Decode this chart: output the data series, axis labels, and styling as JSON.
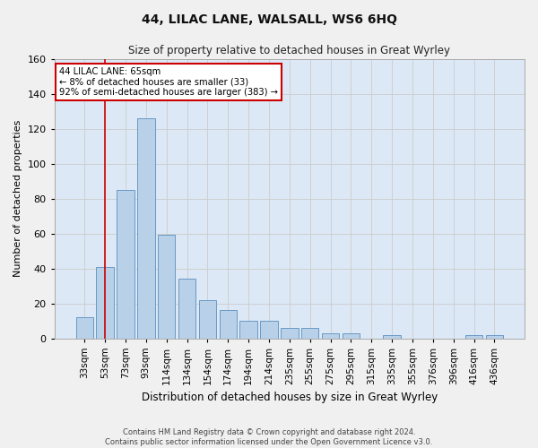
{
  "title": "44, LILAC LANE, WALSALL, WS6 6HQ",
  "subtitle": "Size of property relative to detached houses in Great Wyrley",
  "xlabel": "Distribution of detached houses by size in Great Wyrley",
  "ylabel": "Number of detached properties",
  "categories": [
    "33sqm",
    "53sqm",
    "73sqm",
    "93sqm",
    "114sqm",
    "134sqm",
    "154sqm",
    "174sqm",
    "194sqm",
    "214sqm",
    "235sqm",
    "255sqm",
    "275sqm",
    "295sqm",
    "315sqm",
    "335sqm",
    "355sqm",
    "376sqm",
    "396sqm",
    "416sqm",
    "436sqm"
  ],
  "values": [
    12,
    41,
    85,
    126,
    59,
    34,
    22,
    16,
    10,
    10,
    6,
    6,
    3,
    3,
    0,
    2,
    0,
    0,
    0,
    2,
    2
  ],
  "bar_color": "#b8d0e8",
  "bar_edge_color": "#5b8fc0",
  "vline_x": 1,
  "vline_color": "#cc0000",
  "annotation_text": "44 LILAC LANE: 65sqm\n← 8% of detached houses are smaller (33)\n92% of semi-detached houses are larger (383) →",
  "annotation_box_color": "#ffffff",
  "annotation_box_edge": "#cc0000",
  "ylim": [
    0,
    160
  ],
  "yticks": [
    0,
    20,
    40,
    60,
    80,
    100,
    120,
    140,
    160
  ],
  "grid_color": "#cccccc",
  "bg_color": "#dce8f5",
  "fig_bg_color": "#f0f0f0",
  "footer_line1": "Contains HM Land Registry data © Crown copyright and database right 2024.",
  "footer_line2": "Contains public sector information licensed under the Open Government Licence v3.0."
}
